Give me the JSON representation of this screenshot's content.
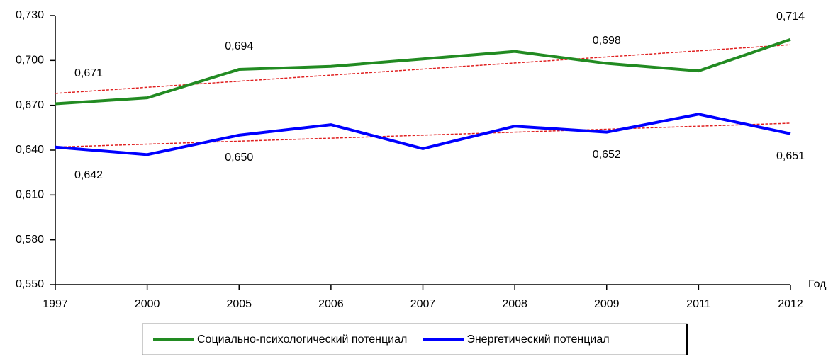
{
  "chart_data": {
    "type": "line",
    "x_label": "Год",
    "categories": [
      "1997",
      "2000",
      "2005",
      "2006",
      "2007",
      "2008",
      "2009",
      "2011",
      "2012"
    ],
    "series": [
      {
        "name": "Социально-психологический потенциал",
        "color": "#228B22",
        "values": [
          0.671,
          0.675,
          0.694,
          0.696,
          0.701,
          0.706,
          0.698,
          0.693,
          0.714
        ],
        "value_labels": [
          "0,671",
          null,
          "0,694",
          null,
          null,
          null,
          "0,698",
          null,
          "0,714"
        ]
      },
      {
        "name": "Энергетический потенциал",
        "color": "#0000FF",
        "values": [
          0.642,
          0.637,
          0.65,
          0.657,
          0.641,
          0.656,
          0.652,
          0.664,
          0.651
        ],
        "value_labels": [
          "0,642",
          null,
          "0,650",
          null,
          null,
          null,
          "0,652",
          null,
          "0,651"
        ]
      }
    ],
    "ylim": [
      0.55,
      0.73
    ],
    "yticks": [
      {
        "value": 0.55,
        "label": "0,550"
      },
      {
        "value": 0.58,
        "label": "0,580"
      },
      {
        "value": 0.61,
        "label": "0,610"
      },
      {
        "value": 0.64,
        "label": "0,640"
      },
      {
        "value": 0.67,
        "label": "0,670"
      },
      {
        "value": 0.7,
        "label": "0,700"
      },
      {
        "value": 0.73,
        "label": "0,730"
      }
    ],
    "trendline": true,
    "trendline_color": "#E02020",
    "legend": "bottom"
  }
}
